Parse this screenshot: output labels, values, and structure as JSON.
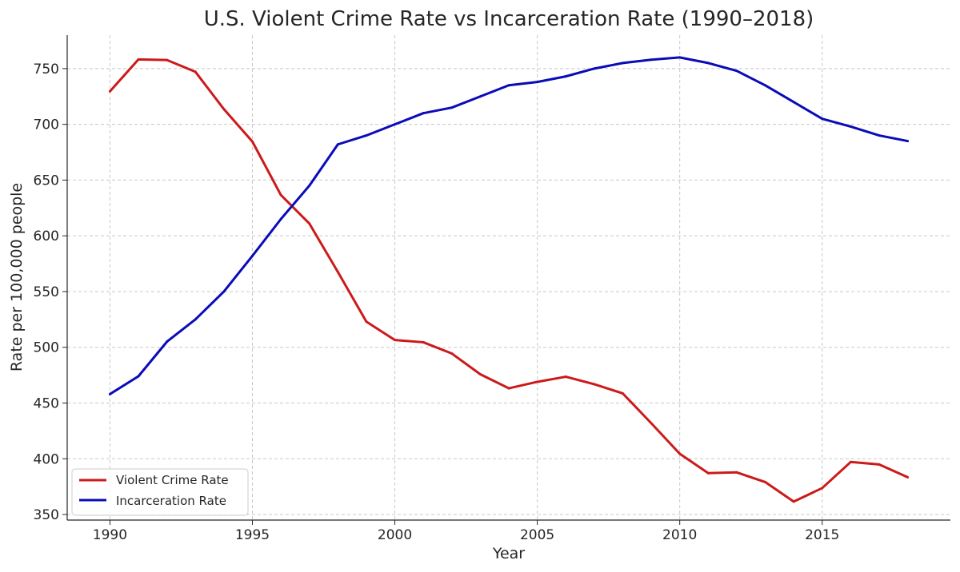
{
  "chart_data": {
    "type": "line",
    "title": "U.S. Violent Crime Rate vs Incarceration Rate (1990–2018)",
    "xlabel": "Year",
    "ylabel": "Rate per 100,000 people",
    "x": [
      1990,
      1991,
      1992,
      1993,
      1994,
      1995,
      1996,
      1997,
      1998,
      1999,
      2000,
      2001,
      2002,
      2003,
      2004,
      2005,
      2006,
      2007,
      2008,
      2009,
      2010,
      2011,
      2012,
      2013,
      2014,
      2015,
      2016,
      2017,
      2018
    ],
    "series": [
      {
        "name": "Violent Crime Rate",
        "color": "#cc1a1a",
        "values": [
          729.6,
          758.2,
          757.7,
          747.1,
          713.6,
          684.5,
          636.6,
          611.0,
          567.6,
          523.0,
          506.5,
          504.5,
          494.4,
          475.8,
          463.2,
          469.0,
          473.6,
          466.9,
          458.6,
          431.9,
          404.5,
          387.1,
          387.8,
          379.1,
          361.6,
          373.7,
          397.1,
          394.9,
          383.4
        ]
      },
      {
        "name": "Incarceration Rate",
        "color": "#0b0bb8",
        "values": [
          458,
          474,
          505,
          525,
          550,
          582,
          615,
          645,
          682,
          690,
          700,
          710,
          715,
          725,
          735,
          738,
          743,
          750,
          755,
          758,
          760,
          755,
          748,
          735,
          720,
          705,
          698,
          690,
          685
        ]
      }
    ],
    "xlim": [
      1988.5,
      2019.5
    ],
    "ylim": [
      345,
      780
    ],
    "xticks": [
      "1990",
      "1995",
      "2000",
      "2005",
      "2010",
      "2015"
    ],
    "yticks": [
      "350",
      "400",
      "450",
      "500",
      "550",
      "600",
      "650",
      "700",
      "750"
    ],
    "grid": true,
    "legend_position": "bottom-left"
  }
}
